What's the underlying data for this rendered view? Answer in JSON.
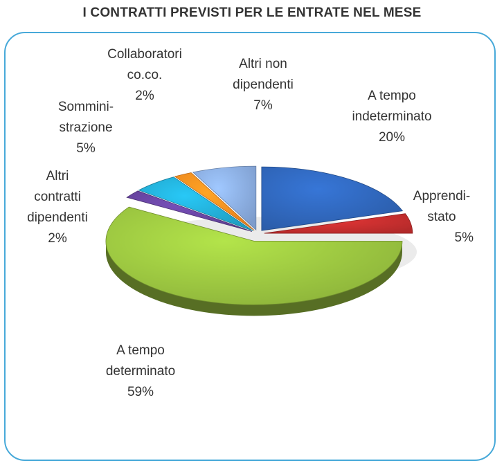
{
  "title": "I CONTRATTI PREVISTI PER LE ENTRATE NEL MESE",
  "colors": {
    "frame_border": "#47a9d9",
    "a_tempo_indeterminato": "#2b5ca8",
    "apprendistato": "#b32a2a",
    "a_tempo_determinato": "#8cb23a",
    "altri_contratti_dipendenti": "#5c3d8f",
    "somministrazione": "#1f9cc0",
    "collaboratori": "#e7801d",
    "altri_non_dipendenti": "#7d9ccc"
  },
  "chart_data": {
    "type": "pie",
    "title": "I CONTRATTI PREVISTI PER LE ENTRATE NEL MESE",
    "style": "3d-exploded",
    "slices": [
      {
        "key": "a_tempo_indeterminato",
        "label_lines": [
          "A tempo",
          "indeterminato"
        ],
        "value": 20,
        "value_label": "20%",
        "color": "#2b5ca8"
      },
      {
        "key": "apprendistato",
        "label_lines": [
          "Apprendi-",
          "stato"
        ],
        "value": 5,
        "value_label": "5%",
        "color": "#b32a2a"
      },
      {
        "key": "a_tempo_determinato",
        "label_lines": [
          "A tempo",
          "determinato"
        ],
        "value": 59,
        "value_label": "59%",
        "color": "#8cb23a"
      },
      {
        "key": "altri_contratti_dipendenti",
        "label_lines": [
          "Altri",
          "contratti",
          "dipendenti"
        ],
        "value": 2,
        "value_label": "2%",
        "color": "#5c3d8f"
      },
      {
        "key": "somministrazione",
        "label_lines": [
          "Sommini-",
          "strazione"
        ],
        "value": 5,
        "value_label": "5%",
        "color": "#1f9cc0"
      },
      {
        "key": "collaboratori",
        "label_lines": [
          "Collaboratori",
          "co.co."
        ],
        "value": 2,
        "value_label": "2%",
        "color": "#e7801d"
      },
      {
        "key": "altri_non_dipendenti",
        "label_lines": [
          "Altri non",
          "dipendenti"
        ],
        "value": 7,
        "value_label": "7%",
        "color": "#7d9ccc"
      }
    ]
  }
}
